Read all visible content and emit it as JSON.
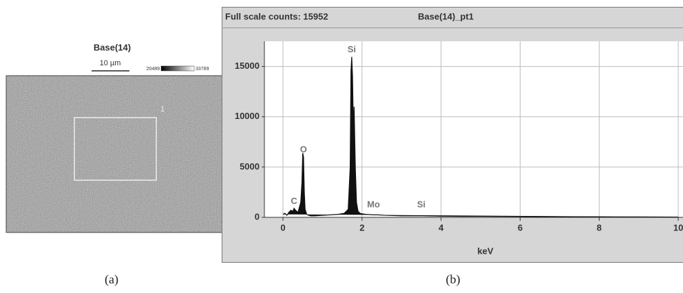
{
  "panel_a": {
    "title": "Base(14)",
    "scale_bar": "10 µm",
    "scale_min": "20489",
    "scale_max": "33789",
    "region_label": "1",
    "caption": "(a)"
  },
  "caption_b": "(b)",
  "chart_data": {
    "type": "spectrum",
    "title": "Full scale counts: 15952",
    "subtitle": "Base(14)_pt1",
    "x_label": "keV",
    "x": [
      0,
      0.05,
      0.1,
      0.15,
      0.2,
      0.25,
      0.28,
      0.32,
      0.38,
      0.45,
      0.48,
      0.5,
      0.52,
      0.54,
      0.56,
      0.6,
      0.65,
      0.7,
      0.8,
      1.0,
      1.2,
      1.4,
      1.55,
      1.65,
      1.7,
      1.72,
      1.74,
      1.76,
      1.78,
      1.8,
      1.83,
      1.86,
      1.9,
      1.95,
      2.0,
      2.1,
      2.29,
      2.4,
      2.6,
      3.0,
      3.5,
      4.0,
      4.5,
      5.0,
      6.0,
      7.0,
      8.0,
      9.0,
      10.0
    ],
    "values": [
      300,
      400,
      200,
      500,
      700,
      600,
      900,
      700,
      500,
      1500,
      3500,
      6400,
      6000,
      2500,
      800,
      300,
      200,
      150,
      150,
      200,
      250,
      300,
      400,
      800,
      5000,
      14500,
      15952,
      14000,
      9000,
      11000,
      5000,
      1500,
      600,
      400,
      350,
      300,
      250,
      250,
      200,
      150,
      150,
      120,
      100,
      100,
      80,
      60,
      50,
      40,
      30
    ],
    "color": "#111111",
    "annotations": [
      {
        "text": "C",
        "x": 0.28
      },
      {
        "text": "O",
        "x": 0.52
      },
      {
        "text": "Si",
        "x": 1.74
      },
      {
        "text": "Mo",
        "x": 2.29
      },
      {
        "text": "Si",
        "x": 3.5
      }
    ],
    "xlim": [
      -0.47,
      10.12
    ],
    "ylim": [
      0,
      17500
    ],
    "xticks": [
      0,
      2,
      4,
      6,
      8,
      10
    ],
    "yticks": [
      0,
      5000,
      10000,
      15000
    ],
    "grid": true
  }
}
